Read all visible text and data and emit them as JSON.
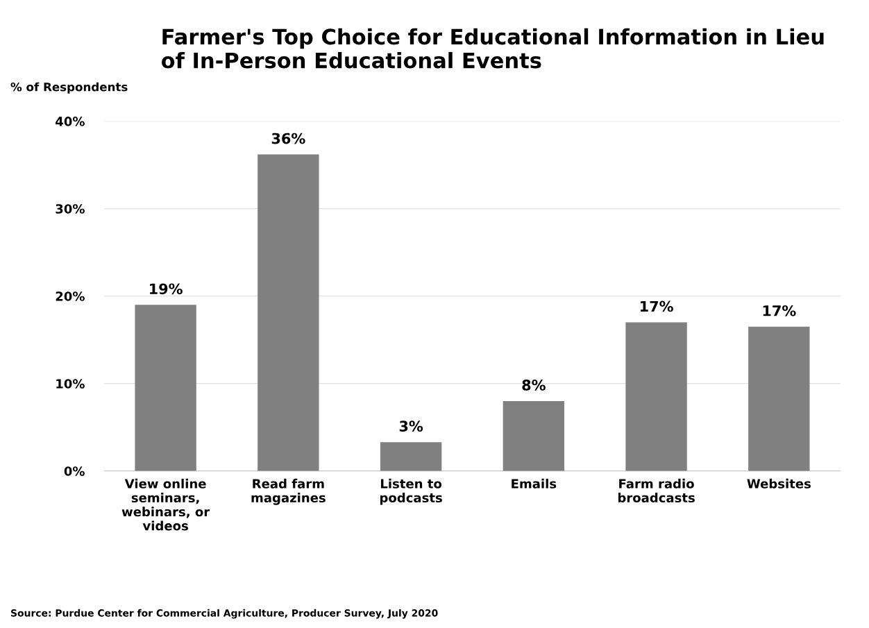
{
  "chart_data": {
    "type": "bar",
    "title": "Farmer's Top Choice for Educational Information in Lieu\nof In-Person Educational Events",
    "ylabel": "% of Respondents",
    "categories": [
      "View online\nseminars,\nwebinars, or\nvideos",
      "Read farm\nmagazines",
      "Listen to\npodcasts",
      "Emails",
      "Farm radio\nbroadcasts",
      "Websites"
    ],
    "values": [
      19,
      36.2,
      3.3,
      8,
      17,
      16.5
    ],
    "value_labels": [
      "19%",
      "36%",
      "3%",
      "8%",
      "17%",
      "17%"
    ],
    "color": "#808080",
    "ylim": [
      0,
      40
    ],
    "yticks": [
      {
        "value": 0,
        "label": "0%"
      },
      {
        "value": 10,
        "label": "10%"
      },
      {
        "value": 20,
        "label": "20%"
      },
      {
        "value": 30,
        "label": "30%"
      },
      {
        "value": 40,
        "label": "40%"
      }
    ],
    "grid": "y",
    "annotations": [
      "Source: Purdue Center for Commercial Agriculture, Producer Survey, July 2020"
    ]
  }
}
